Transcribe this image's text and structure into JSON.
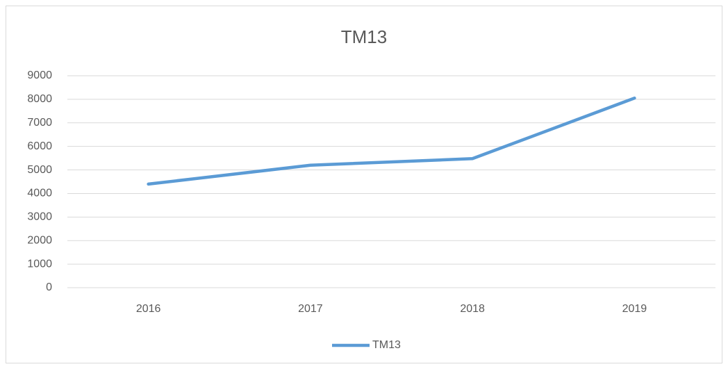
{
  "chart_data": {
    "type": "line",
    "title": "TM13",
    "categories": [
      "2016",
      "2017",
      "2018",
      "2019"
    ],
    "series": [
      {
        "name": "TM13",
        "color": "#5b9bd5",
        "values": [
          4400,
          5200,
          5480,
          8050
        ]
      }
    ],
    "ylim": [
      0,
      9000
    ],
    "yticks": [
      0,
      1000,
      2000,
      3000,
      4000,
      5000,
      6000,
      7000,
      8000,
      9000
    ],
    "grid": true,
    "legend": "bottom"
  }
}
